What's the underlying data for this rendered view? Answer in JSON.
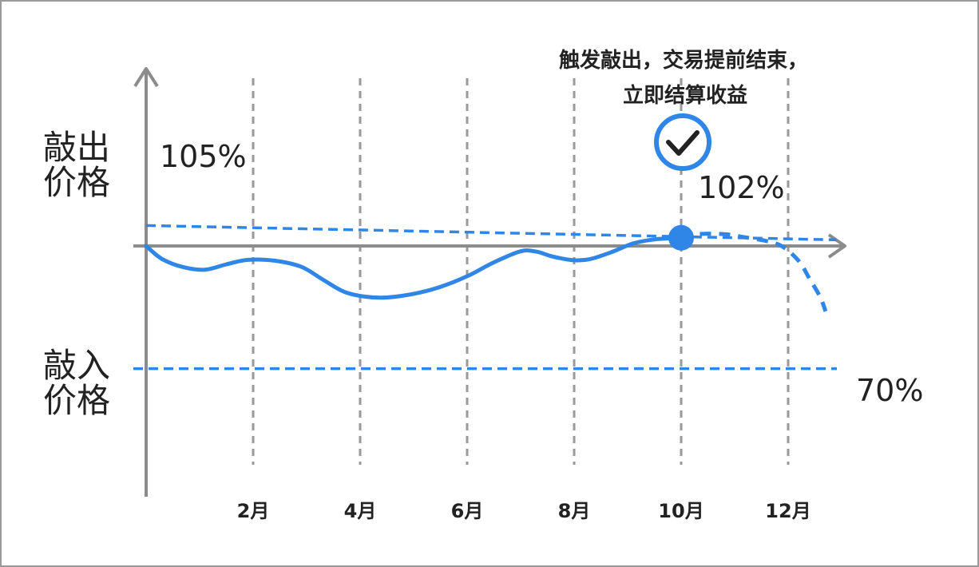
{
  "labels": {
    "knock_out_line1": "敲出",
    "knock_out_line2": "价格",
    "knock_in_line1": "敲入",
    "knock_in_line2": "价格",
    "knock_out_start": "105%",
    "knock_out_hit": "102%",
    "knock_in_level": "70%",
    "annotation_line1": "触发敲出，交易提前结束，",
    "annotation_line2": "立即结算收益"
  },
  "colors": {
    "accent": "#2f86e6",
    "axis": "#8c8c8c",
    "grid": "#9a9a9a",
    "text": "#222222"
  },
  "icons": {
    "check": "check-circle-icon"
  },
  "chart_data": {
    "type": "line",
    "categories": [
      "2月",
      "4月",
      "6月",
      "8月",
      "10月",
      "12月"
    ],
    "x_range": [
      0,
      12.9
    ],
    "y_range": [
      55,
      115
    ],
    "grid": "vertical dashed lines at each month label",
    "knock_out_barrier": {
      "start": 105,
      "end": 101.5
    },
    "knock_in_barrier": 70,
    "knock_out_point": {
      "x": 10,
      "y": 102
    },
    "price_path_solid": [
      [
        0,
        100
      ],
      [
        0.3,
        96.8
      ],
      [
        0.7,
        94.8
      ],
      [
        1.1,
        94.2
      ],
      [
        1.5,
        95.5
      ],
      [
        1.9,
        96.6
      ],
      [
        2.4,
        96.4
      ],
      [
        2.9,
        94.9
      ],
      [
        3.3,
        91.8
      ],
      [
        3.7,
        88.8
      ],
      [
        4.1,
        87.6
      ],
      [
        4.5,
        87.4
      ],
      [
        5.0,
        88.3
      ],
      [
        5.5,
        90.0
      ],
      [
        6.0,
        92.6
      ],
      [
        6.5,
        96.0
      ],
      [
        7.0,
        98.7
      ],
      [
        7.3,
        98.6
      ],
      [
        7.6,
        97.4
      ],
      [
        8.0,
        96.5
      ],
      [
        8.3,
        96.8
      ],
      [
        8.7,
        98.5
      ],
      [
        9.1,
        100.6
      ],
      [
        9.5,
        101.6
      ],
      [
        10.0,
        102.0
      ]
    ],
    "price_path_dashed": [
      [
        10.0,
        102.0
      ],
      [
        10.3,
        102.9
      ],
      [
        10.8,
        102.9
      ],
      [
        11.2,
        102.1
      ],
      [
        11.6,
        101.2
      ],
      [
        11.9,
        99.8
      ],
      [
        12.2,
        96.3
      ],
      [
        12.4,
        92.0
      ],
      [
        12.6,
        87.5
      ],
      [
        12.7,
        84.0
      ]
    ]
  }
}
